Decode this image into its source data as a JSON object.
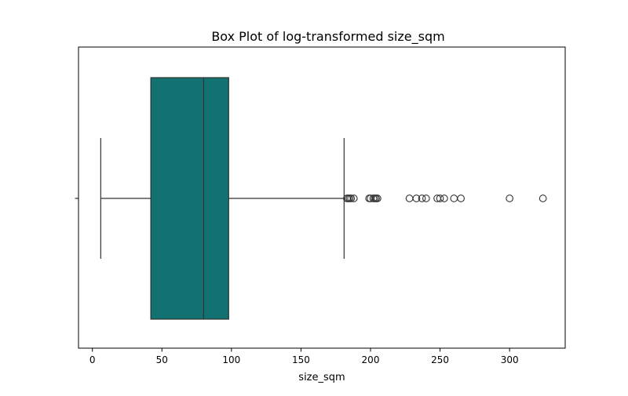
{
  "chart_data": {
    "type": "box",
    "title": "Box Plot of log-transformed size_sqm",
    "xlabel": "size_sqm",
    "ylabel": "",
    "orientation": "horizontal",
    "xlim": [
      -10,
      340
    ],
    "xticks": [
      0,
      50,
      100,
      150,
      200,
      250,
      300
    ],
    "xtick_labels": [
      "0",
      "50",
      "100",
      "150",
      "200",
      "250",
      "300"
    ],
    "grid": false,
    "box": {
      "whisker_low": 6,
      "q1": 42,
      "median": 80,
      "q3": 98,
      "whisker_high": 181,
      "outliers": [
        183,
        184,
        185,
        186,
        188,
        199,
        200,
        202,
        203,
        204,
        205,
        228,
        233,
        237,
        240,
        248,
        250,
        253,
        260,
        265,
        300,
        324
      ]
    },
    "colors": {
      "box_fill": "#127272",
      "line": "#333333",
      "axes": "#000000"
    }
  }
}
